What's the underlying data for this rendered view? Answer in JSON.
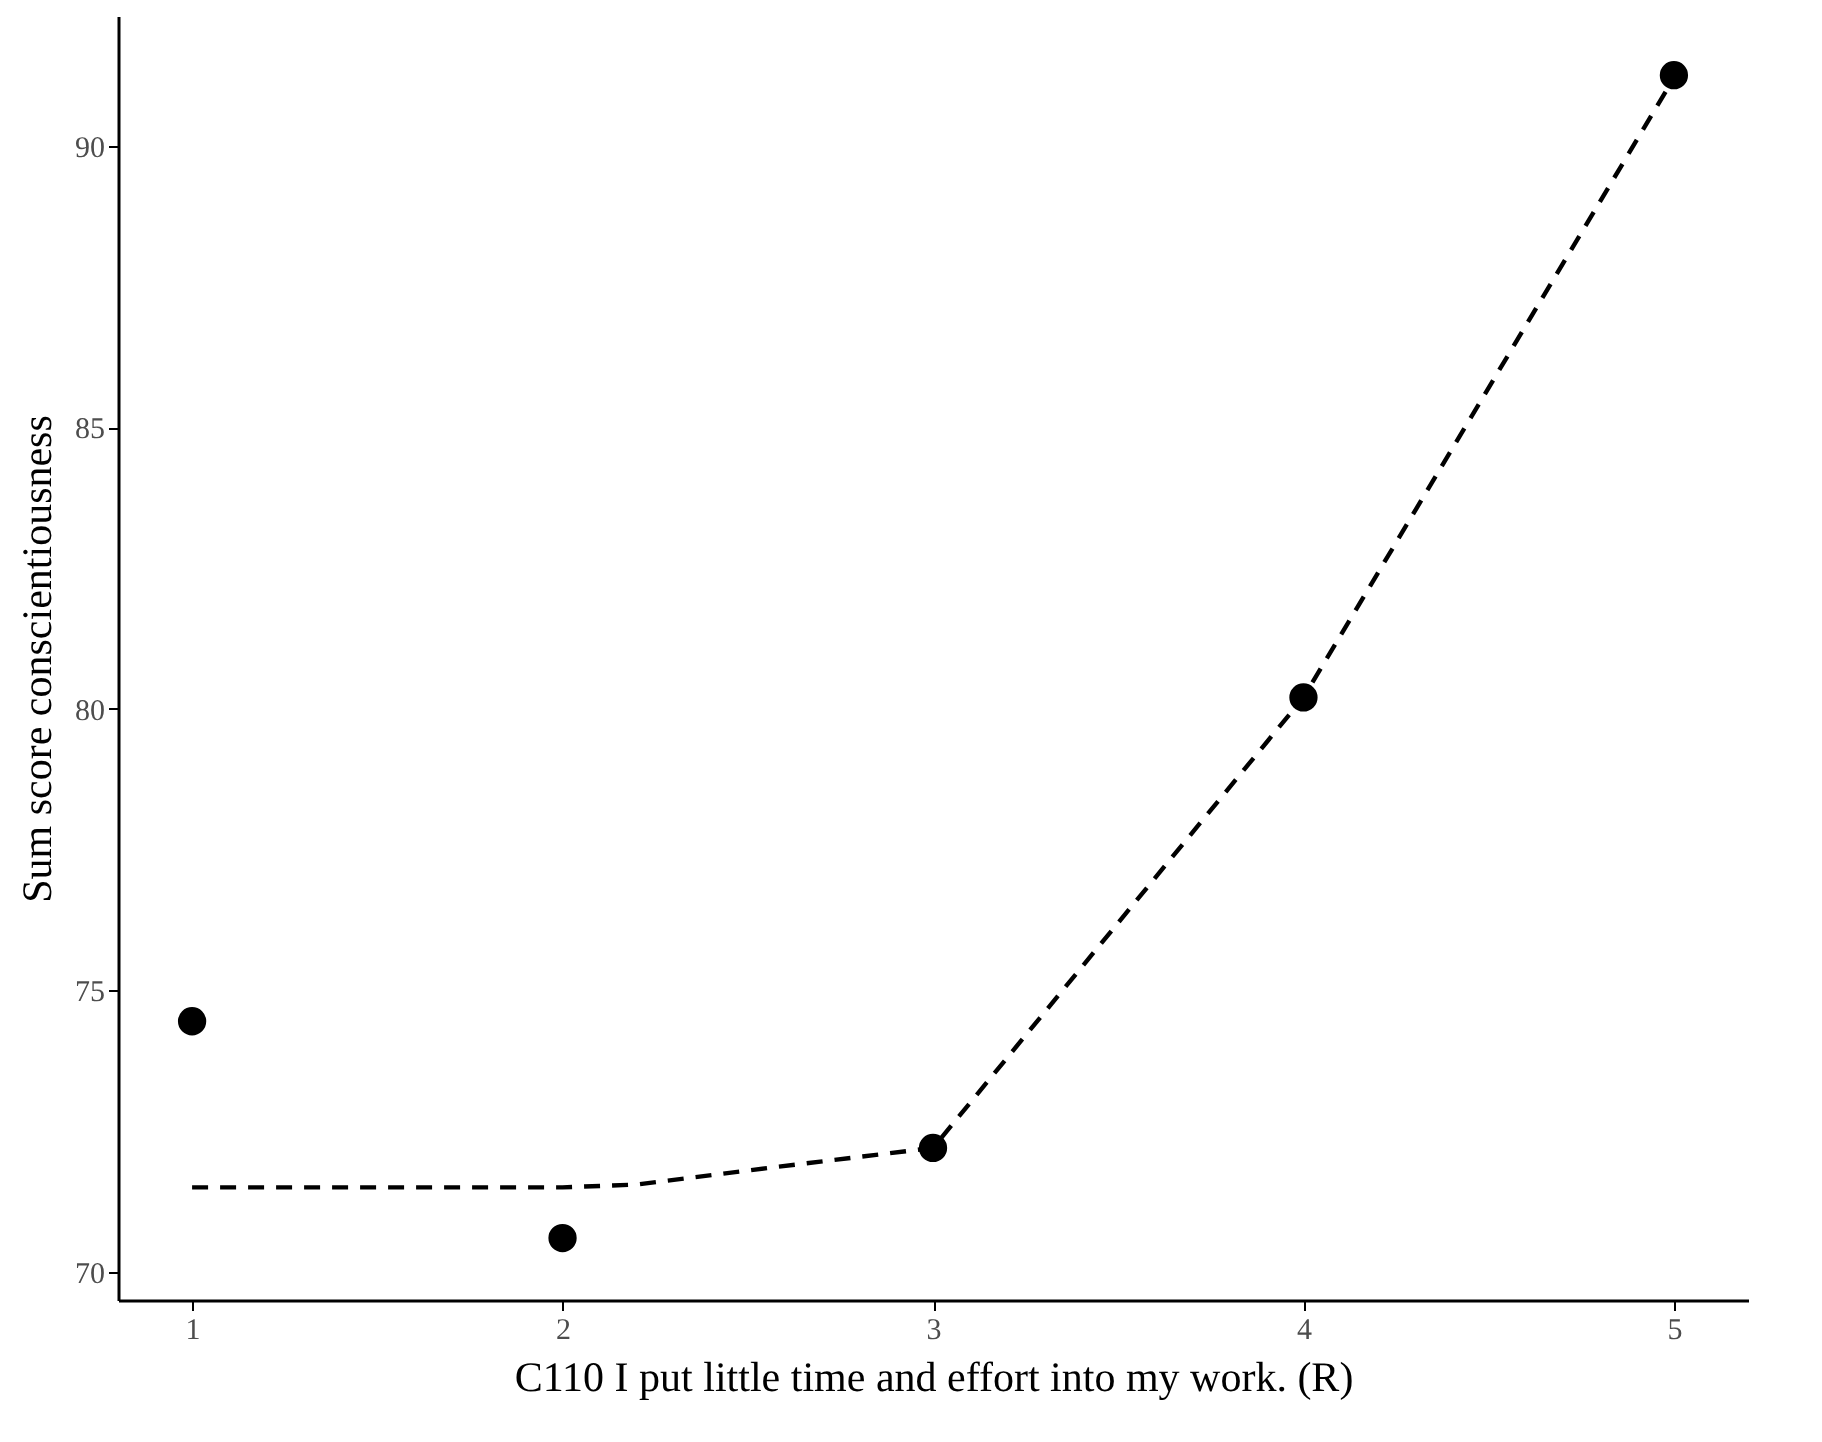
{
  "chart_data": {
    "type": "scatter",
    "xlabel": "C110 I put little time and effort into my work. (R)",
    "ylabel": "Sum score conscientiousness",
    "x": [
      1,
      2,
      3,
      4,
      5
    ],
    "series": [
      {
        "color": "#000000",
        "marker": "circle",
        "values": [
          74.45,
          70.6,
          72.2,
          80.2,
          91.25
        ]
      },
      {
        "type": "line",
        "color": "#000000",
        "marker": "none",
        "line_style": "dashed",
        "x": [
          1,
          2,
          2.2,
          2.5,
          3,
          4,
          5
        ],
        "values": [
          71.5,
          71.5,
          71.55,
          71.8,
          72.2,
          80.2,
          91.2
        ]
      }
    ],
    "xlim": [
      0.8,
      5.2
    ],
    "ylim": [
      69.5,
      92.3
    ],
    "xticks": [
      1,
      2,
      3,
      4,
      5
    ],
    "yticks": [
      70,
      75,
      80,
      85,
      90
    ],
    "grid": false
  }
}
